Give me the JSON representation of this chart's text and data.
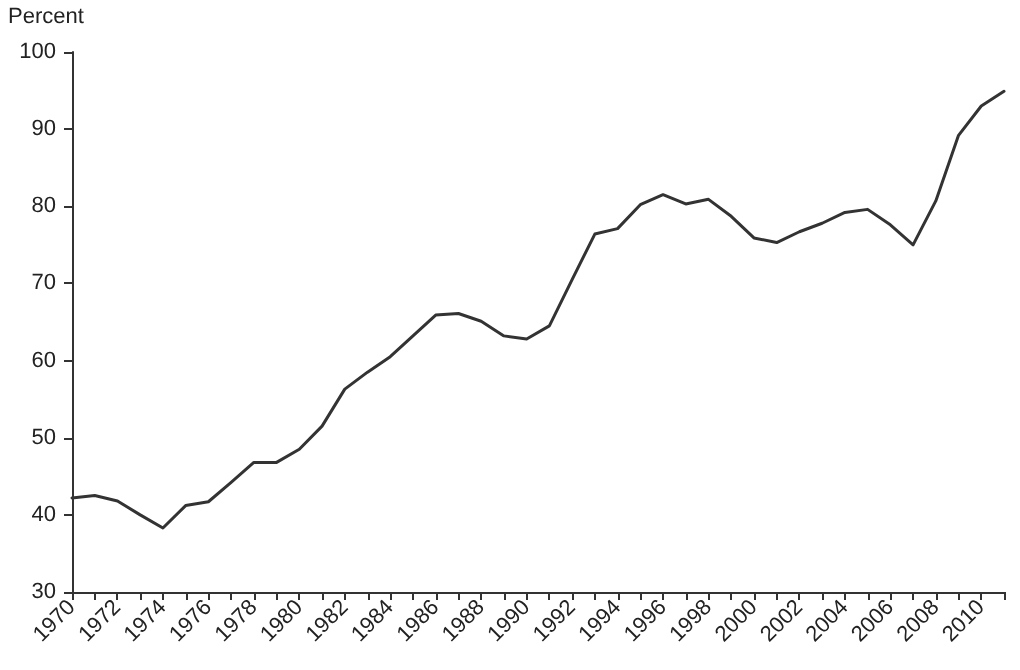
{
  "chart_data": {
    "type": "line",
    "ylabel": "Percent",
    "categories": [
      "1970",
      null,
      "1972",
      null,
      "1974",
      null,
      "1976",
      null,
      "1978",
      null,
      "1980",
      null,
      "1982",
      null,
      "1984",
      null,
      "1986",
      null,
      "1988",
      null,
      "1990",
      null,
      "1992",
      null,
      "1994",
      null,
      "1996",
      null,
      "1998",
      null,
      "2000",
      null,
      "2002",
      null,
      "2004",
      null,
      "2006",
      null,
      "2008",
      null,
      "2010",
      null
    ],
    "series": [
      {
        "color": "#333333",
        "values": [
          42.2,
          42.5,
          41.8,
          40,
          38.3,
          41.2,
          41.7,
          44.2,
          46.8,
          46.8,
          48.5,
          51.5,
          56.3,
          58.5,
          60.5,
          63.2,
          65.9,
          66.1,
          65.1,
          63.2,
          62.8,
          64.5,
          70.5,
          76.4,
          77.1,
          80.2,
          81.5,
          80.3,
          80.9,
          78.7,
          75.9,
          75.3,
          76.7,
          77.8,
          79.2,
          79.6,
          77.6,
          75.0,
          80.7,
          89.2,
          93.0,
          94.9
        ]
      }
    ],
    "ylim": [
      30,
      100
    ],
    "yticks": [
      30,
      40,
      50,
      60,
      70,
      80,
      90,
      100
    ],
    "grid": false,
    "marker": "none",
    "line_style": "solid"
  }
}
